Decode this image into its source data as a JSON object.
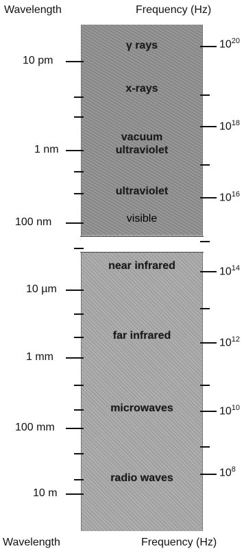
{
  "headers": {
    "top_left": "Wavelength",
    "top_right": "Frequency (Hz)",
    "bottom_left": "Wavelength",
    "bottom_right": "Frequency (Hz)"
  },
  "bands": [
    {
      "label": "γ rays"
    },
    {
      "label": "x-rays"
    },
    {
      "label": "vacuum"
    },
    {
      "label": "ultraviolet"
    },
    {
      "label": "ultraviolet"
    },
    {
      "label": "visible"
    },
    {
      "label": "near infrared"
    },
    {
      "label": "far infrared"
    },
    {
      "label": "microwaves"
    },
    {
      "label": "radio waves"
    }
  ],
  "wavelength_labels": [
    "10 pm",
    "1 nm",
    "100 nm",
    "10 µm",
    "1 mm",
    "100 mm",
    "10 m"
  ],
  "frequency_labels": [
    {
      "base": "10",
      "exp": "20"
    },
    {
      "base": "10",
      "exp": "18"
    },
    {
      "base": "10",
      "exp": "16"
    },
    {
      "base": "10",
      "exp": "14"
    },
    {
      "base": "10",
      "exp": "12"
    },
    {
      "base": "10",
      "exp": "10"
    },
    {
      "base": "10",
      "exp": "8"
    }
  ]
}
